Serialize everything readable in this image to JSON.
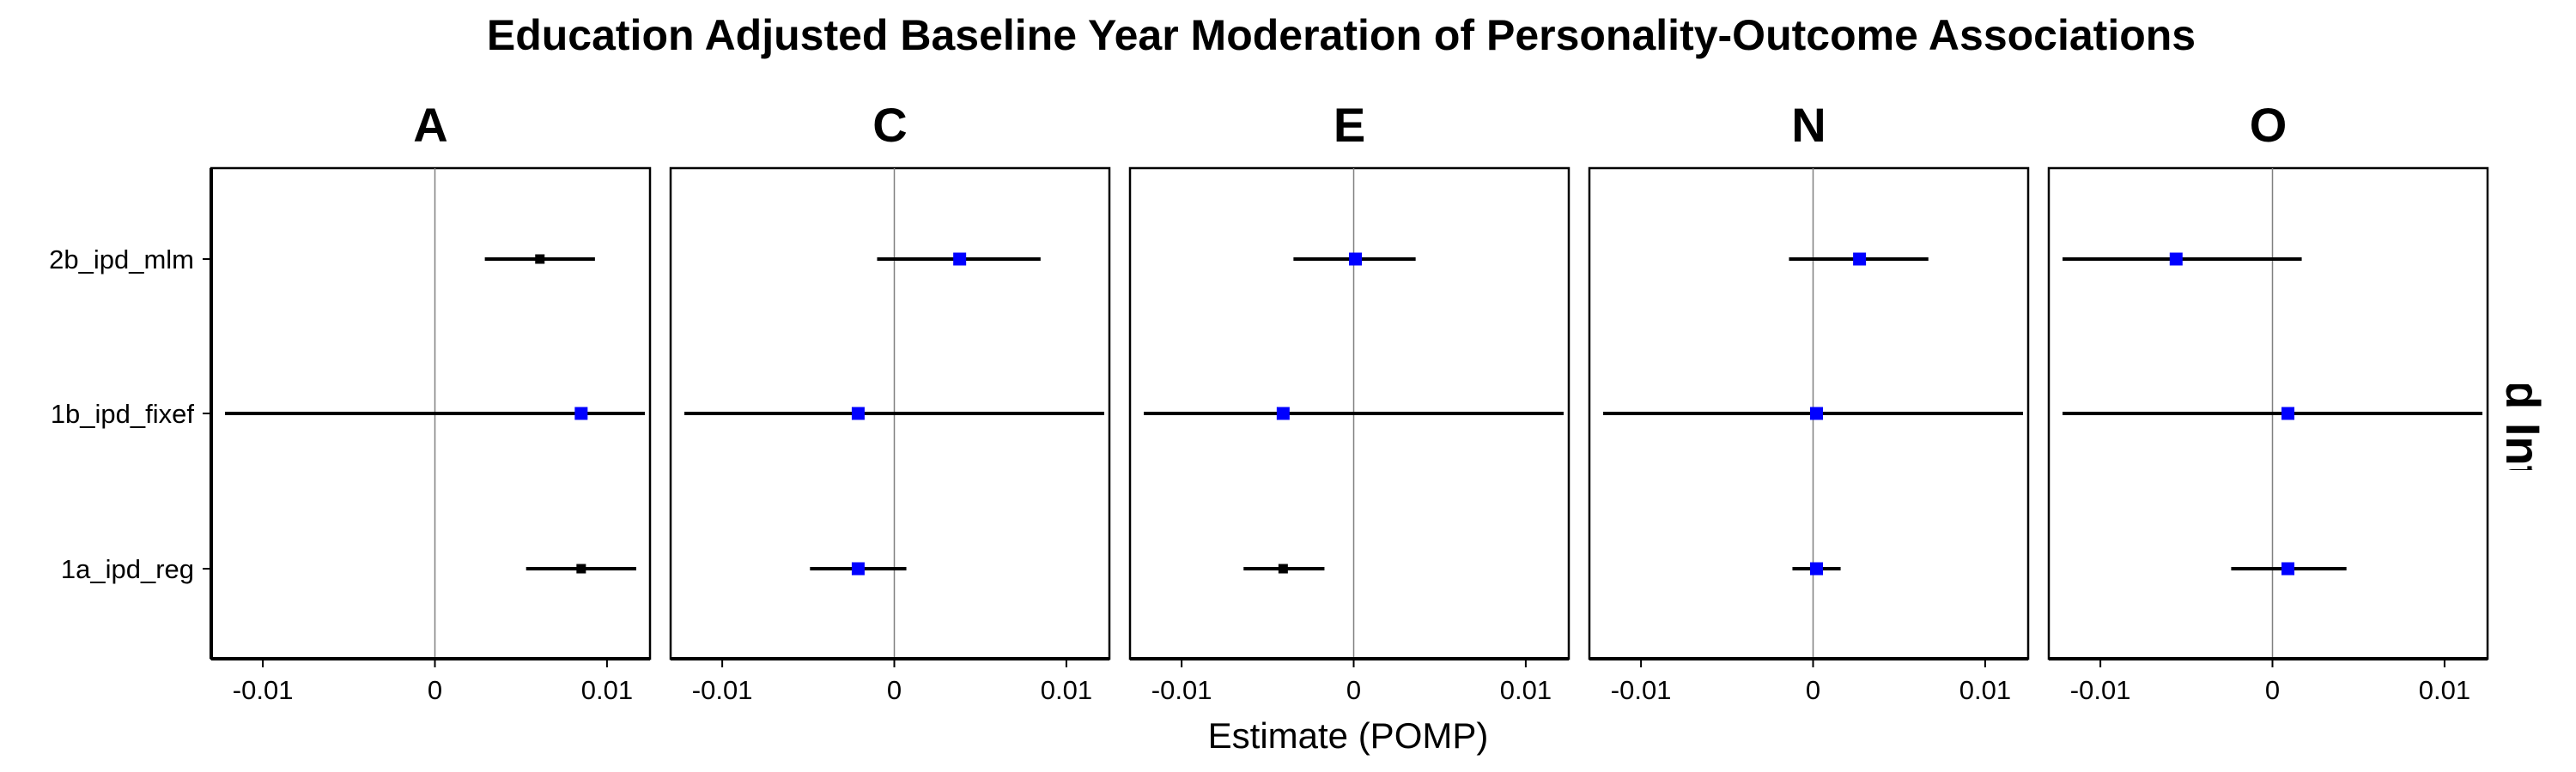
{
  "chart_data": {
    "type": "scatter",
    "subtype": "forest-plot",
    "title": "Education Adjusted Baseline Year Moderation of Personality-Outcome Associations",
    "xlabel": "Estimate (POMP)",
    "ylabel": "",
    "facet_strip_label": "Crystallized Intelligence",
    "categories": [
      "2b_ipd_mlm",
      "1b_ipd_fixef",
      "1a_ipd_reg"
    ],
    "xlim": [
      -0.013,
      0.0125
    ],
    "x_ticks": [
      -0.01,
      0,
      0.01
    ],
    "x_tick_labels": [
      "-0.01",
      "0",
      "0.01"
    ],
    "reference_line_x": 0,
    "grid": false,
    "legend": "none",
    "colors": {
      "significant": "#000000",
      "non_significant": "#0000ff",
      "error_bar": "#000000",
      "reference_line": "#808080"
    },
    "facets": [
      {
        "name": "A",
        "points": [
          {
            "term": "2b_ipd_mlm",
            "estimate": 0.0061,
            "ci_low": 0.0029,
            "ci_high": 0.0093,
            "significant": true
          },
          {
            "term": "1b_ipd_fixef",
            "estimate": 0.0085,
            "ci_low": -0.0122,
            "ci_high": 0.0122,
            "significant": false
          },
          {
            "term": "1a_ipd_reg",
            "estimate": 0.0085,
            "ci_low": 0.0053,
            "ci_high": 0.0117,
            "significant": true
          }
        ]
      },
      {
        "name": "C",
        "points": [
          {
            "term": "2b_ipd_mlm",
            "estimate": 0.0038,
            "ci_low": -0.001,
            "ci_high": 0.0085,
            "significant": false
          },
          {
            "term": "1b_ipd_fixef",
            "estimate": -0.0021,
            "ci_low": -0.0122,
            "ci_high": 0.0122,
            "significant": false
          },
          {
            "term": "1a_ipd_reg",
            "estimate": -0.0021,
            "ci_low": -0.0049,
            "ci_high": 0.0007,
            "significant": false
          }
        ]
      },
      {
        "name": "E",
        "points": [
          {
            "term": "2b_ipd_mlm",
            "estimate": 0.0001,
            "ci_low": -0.0035,
            "ci_high": 0.0036,
            "significant": false
          },
          {
            "term": "1b_ipd_fixef",
            "estimate": -0.0041,
            "ci_low": -0.0122,
            "ci_high": 0.0122,
            "significant": false
          },
          {
            "term": "1a_ipd_reg",
            "estimate": -0.0041,
            "ci_low": -0.0064,
            "ci_high": -0.0017,
            "significant": true
          }
        ]
      },
      {
        "name": "N",
        "points": [
          {
            "term": "2b_ipd_mlm",
            "estimate": 0.0027,
            "ci_low": -0.0014,
            "ci_high": 0.0067,
            "significant": false
          },
          {
            "term": "1b_ipd_fixef",
            "estimate": 0.0002,
            "ci_low": -0.0122,
            "ci_high": 0.0122,
            "significant": false
          },
          {
            "term": "1a_ipd_reg",
            "estimate": 0.0002,
            "ci_low": -0.0012,
            "ci_high": 0.0016,
            "significant": false
          }
        ]
      },
      {
        "name": "O",
        "points": [
          {
            "term": "2b_ipd_mlm",
            "estimate": -0.0056,
            "ci_low": -0.0122,
            "ci_high": 0.0017,
            "significant": false
          },
          {
            "term": "1b_ipd_fixef",
            "estimate": 0.0009,
            "ci_low": -0.0122,
            "ci_high": 0.0122,
            "significant": false
          },
          {
            "term": "1a_ipd_reg",
            "estimate": 0.0009,
            "ci_low": -0.0024,
            "ci_high": 0.0043,
            "significant": false
          }
        ]
      }
    ]
  }
}
